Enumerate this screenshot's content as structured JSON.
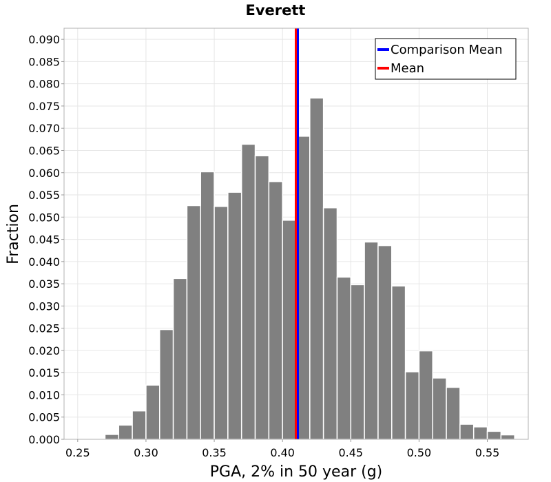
{
  "chart_data": {
    "type": "bar",
    "title": "Everett",
    "xlabel": "PGA, 2% in 50 year (g)",
    "ylabel": "Fraction",
    "xlim": [
      0.24,
      0.58
    ],
    "ylim": [
      0.0,
      0.0925
    ],
    "x_ticks": [
      "0.25",
      "0.30",
      "0.35",
      "0.40",
      "0.45",
      "0.50",
      "0.55"
    ],
    "y_ticks": [
      "0.000",
      "0.005",
      "0.010",
      "0.015",
      "0.020",
      "0.025",
      "0.030",
      "0.035",
      "0.040",
      "0.045",
      "0.050",
      "0.055",
      "0.060",
      "0.065",
      "0.070",
      "0.075",
      "0.080",
      "0.085",
      "0.090"
    ],
    "grid": true,
    "bin_width": 0.01,
    "bin_starts": [
      0.24,
      0.25,
      0.26,
      0.27,
      0.28,
      0.29,
      0.3,
      0.31,
      0.32,
      0.33,
      0.34,
      0.35,
      0.36,
      0.37,
      0.38,
      0.39,
      0.4,
      0.41,
      0.42,
      0.43,
      0.44,
      0.45,
      0.46,
      0.47,
      0.48,
      0.49,
      0.5,
      0.51,
      0.52,
      0.53,
      0.54,
      0.55,
      0.56,
      0.57
    ],
    "values": [
      0.0,
      0.0,
      0.0002,
      0.0011,
      0.0032,
      0.0064,
      0.0122,
      0.0247,
      0.0362,
      0.0526,
      0.0602,
      0.0524,
      0.0556,
      0.0664,
      0.0638,
      0.058,
      0.0493,
      0.0682,
      0.0768,
      0.0521,
      0.0365,
      0.0348,
      0.0444,
      0.0436,
      0.0345,
      0.0152,
      0.0199,
      0.0138,
      0.0117,
      0.0034,
      0.0028,
      0.0018,
      0.001,
      0.0
    ],
    "bar_color": "#808080",
    "lines": [
      {
        "name": "Comparison Mean",
        "x": 0.4105,
        "color": "#0000ff"
      },
      {
        "name": "Mean",
        "x": 0.4105,
        "color": "#ff0000"
      }
    ],
    "legend_position": "top-right"
  }
}
